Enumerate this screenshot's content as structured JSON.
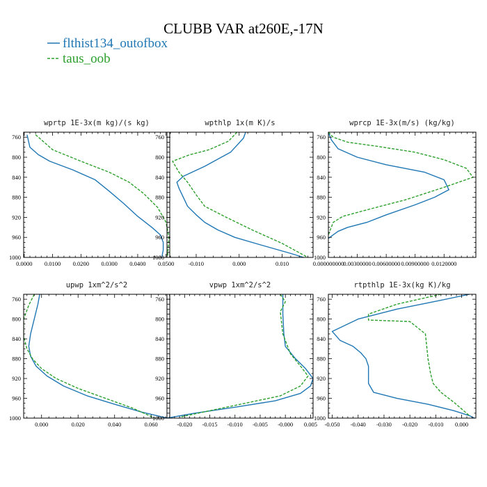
{
  "figure": {
    "title": "CLUBB VAR at260E,-17N",
    "legend": [
      {
        "label": "flthist134_outofbox",
        "color": "#1f77b4",
        "dash": "solid"
      },
      {
        "label": "taus_oob",
        "color": "#2ca02c",
        "dash": "dashed"
      }
    ]
  },
  "chart_data": [
    {
      "type": "line",
      "title": "wprtp  1E-3x(m kg)/(s kg)",
      "xlim": [
        -0.0002,
        0.0513
      ],
      "ylim": [
        1000,
        750
      ],
      "xticks": [
        0.0,
        0.01,
        0.02,
        0.03,
        0.04,
        0.05
      ],
      "xtick_labels": [
        "0.0000",
        "0.0100",
        "0.0200",
        "0.0300",
        "0.0400",
        "0.0500"
      ],
      "yticks": [
        760,
        800,
        840,
        880,
        920,
        960,
        1000
      ],
      "series": [
        {
          "name": "flthist134_outofbox",
          "x": [
            0.001,
            0.002,
            0.005,
            0.009,
            0.017,
            0.025,
            0.03,
            0.035,
            0.04,
            0.045,
            0.048,
            0.049,
            0.049,
            0.0485
          ],
          "y": [
            755,
            780,
            795,
            808,
            825,
            845,
            868,
            892,
            918,
            940,
            955,
            970,
            985,
            1000
          ]
        },
        {
          "name": "taus_oob",
          "x": [
            0.004,
            0.007,
            0.01,
            0.02,
            0.03,
            0.037,
            0.042,
            0.047,
            0.05,
            0.051,
            0.0505
          ],
          "y": [
            755,
            770,
            785,
            808,
            830,
            850,
            872,
            900,
            930,
            960,
            1000
          ]
        }
      ]
    },
    {
      "type": "line",
      "title": "wpthlp  1x(m K)/s",
      "xlim": [
        -0.0168,
        0.0172
      ],
      "ylim": [
        1000,
        750
      ],
      "xticks": [
        -0.01,
        0.0,
        0.01
      ],
      "xtick_labels": [
        "-0.010",
        "0.000",
        "0.010"
      ],
      "yticks": [
        760,
        800,
        840,
        880,
        920,
        960,
        1000
      ],
      "series": [
        {
          "name": "flthist134_outofbox",
          "x": [
            0.0015,
            0.001,
            -0.002,
            -0.008,
            -0.013,
            -0.0145,
            -0.014,
            -0.013,
            -0.012,
            -0.01,
            -0.008,
            -0.005,
            -0.001,
            0.005,
            0.012,
            0.015
          ],
          "y": [
            750,
            762,
            790,
            818,
            838,
            850,
            862,
            880,
            898,
            915,
            930,
            945,
            960,
            975,
            992,
            1000
          ]
        },
        {
          "name": "taus_oob",
          "x": [
            -0.0005,
            -0.0025,
            -0.007,
            -0.0115,
            -0.0155,
            -0.014,
            -0.012,
            -0.01,
            -0.008,
            -0.003,
            0.003,
            0.01,
            0.016
          ],
          "y": [
            750,
            768,
            785,
            795,
            808,
            830,
            850,
            875,
            898,
            920,
            945,
            972,
            1000
          ]
        }
      ]
    },
    {
      "type": "line",
      "title": "wprcp  1E-3x(m/s) (kg/kg)",
      "xlim": [
        0.0,
        0.0153
      ],
      "ylim": [
        1000,
        750
      ],
      "xticks": [
        0.0,
        0.003,
        0.006,
        0.009,
        0.012
      ],
      "xtick_labels": [
        "0.000000000",
        "0.00300000",
        "0.00600000",
        "0.00900000",
        "0.0120000"
      ],
      "yticks": [
        760,
        800,
        840,
        880,
        920,
        960,
        1000
      ],
      "series": [
        {
          "name": "flthist134_outofbox",
          "x": [
            0.0,
            0.0003,
            0.001,
            0.003,
            0.006,
            0.01,
            0.012,
            0.0125,
            0.011,
            0.009,
            0.006,
            0.004,
            0.002,
            0.001,
            0.0005,
            0.0
          ],
          "y": [
            750,
            765,
            783,
            800,
            815,
            830,
            845,
            865,
            880,
            895,
            915,
            930,
            940,
            948,
            955,
            962
          ]
        },
        {
          "name": "taus_oob",
          "x": [
            0.0,
            0.0005,
            0.002,
            0.005,
            0.009,
            0.012,
            0.0143,
            0.015,
            0.012,
            0.008,
            0.004,
            0.0015,
            0.0005,
            0.0
          ],
          "y": [
            750,
            760,
            770,
            778,
            790,
            805,
            822,
            840,
            860,
            885,
            905,
            918,
            930,
            955
          ]
        }
      ]
    },
    {
      "type": "line",
      "title": "upwp  1xm^2/s^2",
      "xlim": [
        -0.0098,
        0.0702
      ],
      "ylim": [
        1000,
        750
      ],
      "xticks": [
        0.0,
        0.02,
        0.04,
        0.06
      ],
      "xtick_labels": [
        "0.000",
        "0.020",
        "0.040",
        "0.060"
      ],
      "yticks": [
        760,
        800,
        840,
        880,
        920,
        960,
        1000
      ],
      "series": [
        {
          "name": "flthist134_outofbox",
          "x": [
            -0.001,
            -0.002,
            -0.004,
            -0.006,
            -0.007,
            -0.006,
            -0.003,
            0.003,
            0.012,
            0.025,
            0.04,
            0.055,
            0.069
          ],
          "y": [
            750,
            770,
            800,
            830,
            855,
            875,
            895,
            915,
            935,
            955,
            972,
            988,
            1000
          ]
        },
        {
          "name": "taus_oob",
          "x": [
            -0.004,
            -0.007,
            -0.0098,
            -0.0098,
            -0.008,
            -0.005,
            0.0,
            0.008,
            0.02,
            0.035,
            0.05,
            0.062
          ],
          "y": [
            750,
            772,
            800,
            835,
            860,
            880,
            900,
            920,
            940,
            960,
            980,
            1000
          ]
        }
      ]
    },
    {
      "type": "line",
      "title": "vpwp  1xm^2/s^2",
      "xlim": [
        -0.0235,
        0.0055
      ],
      "ylim": [
        1000,
        750
      ],
      "xticks": [
        -0.02,
        -0.015,
        -0.01,
        -0.005,
        0.0,
        0.005
      ],
      "xtick_labels": [
        "-0.020",
        "-0.015",
        "-0.010",
        "-0.005",
        "-0.000",
        "0.005"
      ],
      "yticks": [
        760,
        800,
        840,
        880,
        920,
        960,
        1000
      ],
      "series": [
        {
          "name": "flthist134_outofbox",
          "x": [
            -0.0005,
            -0.0005,
            -0.0003,
            0.0,
            0.002,
            0.004,
            0.0055,
            0.005,
            0.003,
            -0.002,
            -0.01,
            -0.018,
            -0.0235
          ],
          "y": [
            750,
            790,
            830,
            855,
            880,
            900,
            920,
            935,
            950,
            965,
            978,
            990,
            1000
          ]
        },
        {
          "name": "taus_oob",
          "x": [
            -0.001,
            0.0,
            -0.001,
            -0.0005,
            0.001,
            0.003,
            0.0045,
            0.003,
            -0.001,
            -0.008,
            -0.015,
            -0.021
          ],
          "y": [
            750,
            765,
            785,
            830,
            870,
            895,
            915,
            935,
            955,
            970,
            985,
            998
          ]
        }
      ]
    },
    {
      "type": "line",
      "title": "rtpthlp  1E-3x(kg K)/kg",
      "xlim": [
        -0.0515,
        0.0055
      ],
      "ylim": [
        1000,
        750
      ],
      "xticks": [
        -0.05,
        -0.04,
        -0.03,
        -0.02,
        -0.01,
        0.0
      ],
      "xtick_labels": [
        "-0.050",
        "-0.040",
        "-0.030",
        "-0.020",
        "-0.010",
        "0.000"
      ],
      "yticks": [
        760,
        800,
        840,
        880,
        920,
        960,
        1000
      ],
      "series": [
        {
          "name": "flthist134_outofbox",
          "x": [
            0.003,
            -0.008,
            -0.025,
            -0.04,
            -0.05,
            -0.047,
            -0.042,
            -0.039,
            -0.037,
            -0.036,
            -0.036,
            -0.034,
            -0.025,
            -0.013,
            -0.003,
            0.003,
            0.005
          ],
          "y": [
            750,
            762,
            780,
            800,
            825,
            843,
            855,
            868,
            880,
            895,
            930,
            948,
            960,
            972,
            985,
            995,
            1000
          ]
        },
        {
          "name": "taus_oob",
          "x": [
            -0.008,
            -0.025,
            -0.036,
            -0.036,
            -0.02,
            -0.014,
            -0.013,
            -0.012,
            -0.011,
            -0.008,
            -0.003,
            0.003
          ],
          "y": [
            750,
            770,
            790,
            802,
            805,
            830,
            880,
            910,
            930,
            948,
            968,
            995
          ]
        }
      ]
    }
  ]
}
